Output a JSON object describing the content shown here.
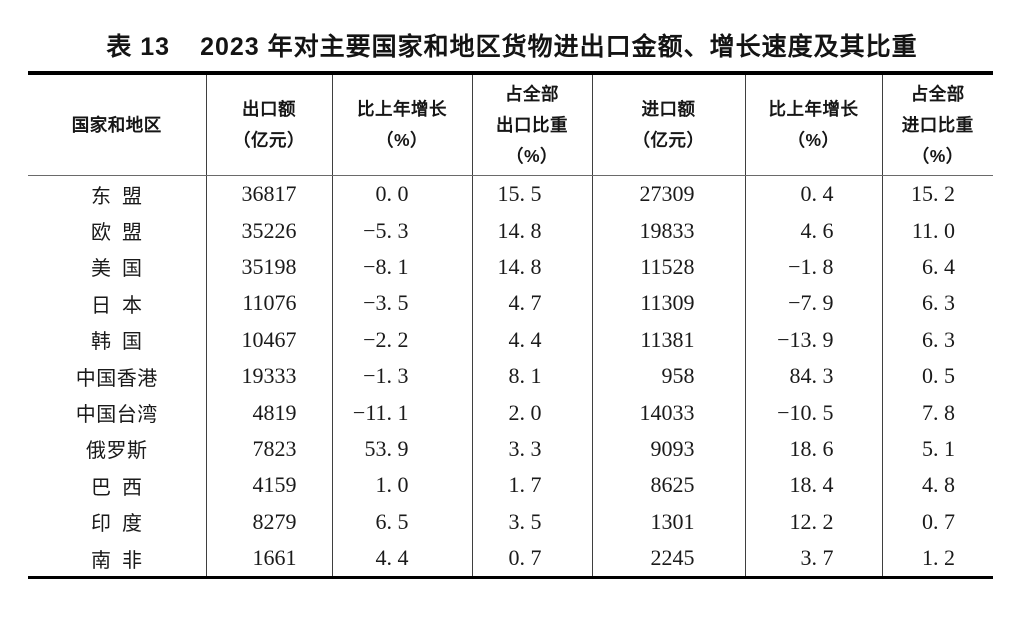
{
  "title": {
    "label": "表 13",
    "text": "2023 年对主要国家和地区货物进出口金额、增长速度及其比重"
  },
  "table": {
    "headers": [
      {
        "id": "region",
        "lines": [
          "国家和地区"
        ]
      },
      {
        "id": "export-value",
        "lines": [
          "出口额",
          "（亿元）"
        ]
      },
      {
        "id": "export-growth",
        "lines": [
          "比上年增长",
          "（%）"
        ]
      },
      {
        "id": "export-share",
        "lines": [
          "占全部",
          "出口比重",
          "（%）"
        ]
      },
      {
        "id": "import-value",
        "lines": [
          "进口额",
          "（亿元）"
        ]
      },
      {
        "id": "import-growth",
        "lines": [
          "比上年增长",
          "（%）"
        ]
      },
      {
        "id": "import-share",
        "lines": [
          "占全部",
          "进口比重",
          "（%）"
        ]
      }
    ],
    "rows": [
      {
        "region": "东盟",
        "values": [
          "36817",
          "0.0",
          "15.5",
          "27309",
          "0.4",
          "15.2"
        ]
      },
      {
        "region": "欧盟",
        "values": [
          "35226",
          "-5.3",
          "14.8",
          "19833",
          "4.6",
          "11.0"
        ]
      },
      {
        "region": "美国",
        "values": [
          "35198",
          "-8.1",
          "14.8",
          "11528",
          "-1.8",
          "6.4"
        ]
      },
      {
        "region": "日本",
        "values": [
          "11076",
          "-3.5",
          "4.7",
          "11309",
          "-7.9",
          "6.3"
        ]
      },
      {
        "region": "韩国",
        "values": [
          "10467",
          "-2.2",
          "4.4",
          "11381",
          "-13.9",
          "6.3"
        ]
      },
      {
        "region": "中国香港",
        "values": [
          "19333",
          "-1.3",
          "8.1",
          "958",
          "84.3",
          "0.5"
        ]
      },
      {
        "region": "中国台湾",
        "values": [
          "4819",
          "-11.1",
          "2.0",
          "14033",
          "-10.5",
          "7.8"
        ]
      },
      {
        "region": "俄罗斯",
        "values": [
          "7823",
          "53.9",
          "3.3",
          "9093",
          "18.6",
          "5.1"
        ]
      },
      {
        "region": "巴西",
        "values": [
          "4159",
          "1.0",
          "1.7",
          "8625",
          "18.4",
          "4.8"
        ]
      },
      {
        "region": "印度",
        "values": [
          "8279",
          "6.5",
          "3.5",
          "1301",
          "12.2",
          "0.7"
        ]
      },
      {
        "region": "南非",
        "values": [
          "1661",
          "4.4",
          "0.7",
          "2245",
          "3.7",
          "1.2"
        ]
      }
    ]
  },
  "colors": {
    "background": "#ffffff",
    "text": "#1a1a1a",
    "border_heavy": "#000000",
    "border_light": "#6a6a6a",
    "grid_line": "#3f3f3f"
  }
}
